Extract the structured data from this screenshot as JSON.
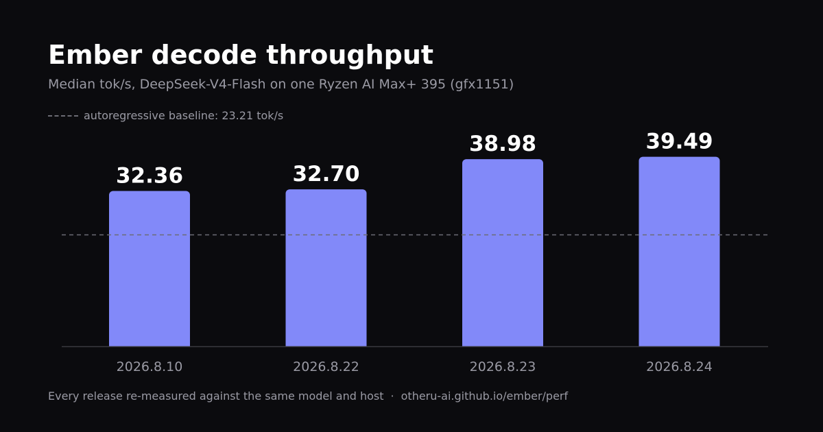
{
  "header": {
    "title": "Ember decode throughput",
    "subtitle": "Median tok/s, DeepSeek-V4-Flash on one Ryzen AI Max+ 395 (gfx1151)"
  },
  "legend": {
    "baseline_label": "autoregressive baseline: 23.21 tok/s"
  },
  "footer": {
    "note": "Every release re-measured against the same model and host",
    "separator": "·",
    "link": "otheru-ai.github.io/ember/perf"
  },
  "colors": {
    "background": "#0b0b0e",
    "bar": "#8289f9",
    "baseline": "#6c6c74",
    "axis": "#3a3a40"
  },
  "chart_data": {
    "type": "bar",
    "title": "Ember decode throughput",
    "subtitle": "Median tok/s, DeepSeek-V4-Flash on one Ryzen AI Max+ 395 (gfx1151)",
    "categories": [
      "2026.8.10",
      "2026.8.22",
      "2026.8.23",
      "2026.8.24"
    ],
    "values": [
      32.36,
      32.7,
      38.98,
      39.49
    ],
    "value_labels": [
      "32.36",
      "32.70",
      "38.98",
      "39.49"
    ],
    "baseline": {
      "name": "autoregressive baseline",
      "value": 23.21
    },
    "xlabel": "",
    "ylabel": "",
    "ylim": [
      0,
      48
    ],
    "grid": false,
    "legend_position": "top-left"
  }
}
